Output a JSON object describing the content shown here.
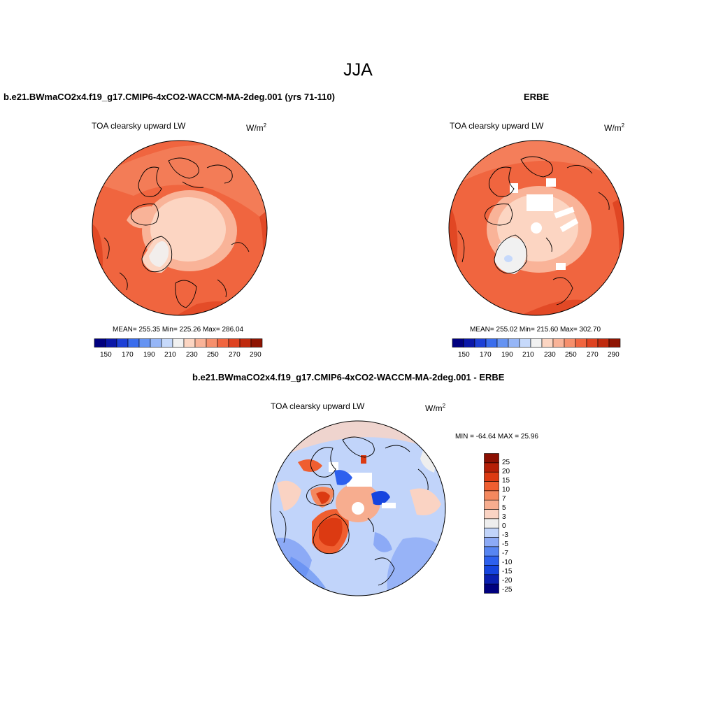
{
  "season": "JJA",
  "palettes": {
    "abs": [
      "#00007f",
      "#0a17a8",
      "#1d40d6",
      "#3a6ded",
      "#6593f2",
      "#96b6f7",
      "#c6d9fb",
      "#f1f1f1",
      "#fcd5c2",
      "#f9b398",
      "#f68f6c",
      "#f0653f",
      "#de4220",
      "#bf2a0e",
      "#8e1402"
    ],
    "diff": [
      "#00007f",
      "#0a1fb0",
      "#1544df",
      "#2d60ee",
      "#5785f2",
      "#8caaf6",
      "#c1d4fa",
      "#eeeeee",
      "#fad3c3",
      "#f7ad8f",
      "#f4885e",
      "#ef5e30",
      "#dc3a12",
      "#b51f07",
      "#8c1002"
    ]
  },
  "panels": {
    "model": {
      "title": "b.e21.BWmaCO2x4.f19_g17.CMIP6-4xCO2-WACCM-MA-2deg.001 (yrs 71-110)",
      "variable": "TOA clearsky upward LW",
      "units": "W/m",
      "units_sup": "2",
      "stats": "MEAN= 255.35  Min= 225.26  Max= 286.04",
      "colorbar_labels": [
        "150",
        "170",
        "190",
        "210",
        "230",
        "250",
        "270",
        "290"
      ]
    },
    "obs": {
      "title": "ERBE",
      "variable": "TOA clearsky upward LW",
      "units": "W/m",
      "units_sup": "2",
      "stats": "MEAN= 255.02  Min= 215.60  Max= 302.70",
      "colorbar_labels": [
        "150",
        "170",
        "190",
        "210",
        "230",
        "250",
        "270",
        "290"
      ]
    },
    "diff": {
      "title": "b.e21.BWmaCO2x4.f19_g17.CMIP6-4xCO2-WACCM-MA-2deg.001 - ERBE",
      "variable": "TOA clearsky upward LW",
      "units": "W/m",
      "units_sup": "2",
      "stats": "MIN = -64.64 MAX =  25.96",
      "colorbar_labels": [
        "25",
        "20",
        "15",
        "10",
        "7",
        "5",
        "3",
        "0",
        "-3",
        "-5",
        "-7",
        "-10",
        "-15",
        "-20",
        "-25"
      ]
    }
  }
}
